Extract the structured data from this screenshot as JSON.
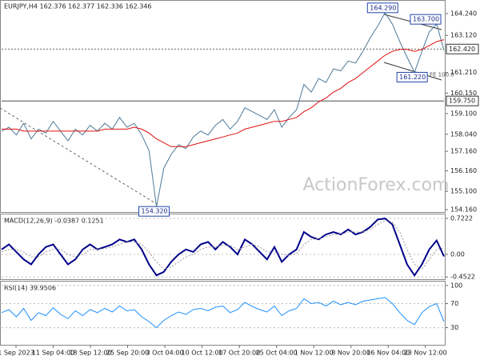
{
  "chart_data": [
    {
      "type": "line",
      "title": "EURJPY,H4 162.376 162.377 162.336 162.346",
      "ylim": [
        154.04,
        164.94
      ],
      "yticks": [
        {
          "value": 164.24,
          "label": "164.240"
        },
        {
          "value": 163.12,
          "label": "163.120"
        },
        {
          "value": 161.21,
          "label": "161.210"
        },
        {
          "value": 160.15,
          "label": "160.150"
        },
        {
          "value": 159.1,
          "label": "159.100"
        },
        {
          "value": 158.04,
          "label": "158.040"
        },
        {
          "value": 157.16,
          "label": "157.160"
        },
        {
          "value": 156.16,
          "label": "156.160"
        },
        {
          "value": 155.1,
          "label": "155.100"
        },
        {
          "value": 154.16,
          "label": "154.160"
        }
      ],
      "levels": [
        {
          "value": 162.42,
          "label": "162.420"
        },
        {
          "value": 159.75,
          "label": "159.750"
        }
      ],
      "annotation": "FE 100.0",
      "series": [
        {
          "color": "#4f7a96",
          "values": [
            158.2,
            158.4,
            158.0,
            158.6,
            157.8,
            158.3,
            158.1,
            158.7,
            158.2,
            157.7,
            158.3,
            158.0,
            158.5,
            158.2,
            158.6,
            158.3,
            158.9,
            158.4,
            158.6,
            158.0,
            157.2,
            154.32,
            156.3,
            157.0,
            157.5,
            157.3,
            157.9,
            158.2,
            158.0,
            158.5,
            158.8,
            158.3,
            158.7,
            159.4,
            159.2,
            159.0,
            158.8,
            159.3,
            158.4,
            158.9,
            159.3,
            160.6,
            160.2,
            160.9,
            160.7,
            161.4,
            161.3,
            161.8,
            161.7,
            162.3,
            163.0,
            163.6,
            164.29,
            163.7,
            162.8,
            162.0,
            161.22,
            162.3,
            163.3,
            163.7,
            162.35
          ],
          "value_labels": [
            null,
            null,
            null,
            null,
            null,
            null,
            null,
            null,
            null,
            null,
            null,
            null,
            null,
            null,
            null,
            null,
            null,
            null,
            null,
            null,
            null,
            "154.320",
            null,
            null,
            null,
            null,
            null,
            null,
            null,
            null,
            null,
            null,
            null,
            null,
            null,
            null,
            null,
            null,
            null,
            null,
            null,
            null,
            null,
            null,
            null,
            null,
            null,
            null,
            null,
            null,
            null,
            null,
            "164.290",
            null,
            null,
            null,
            "161.220",
            null,
            null,
            "163.700",
            null
          ]
        },
        {
          "color": "#e01010",
          "values": [
            158.3,
            158.3,
            158.3,
            158.2,
            158.2,
            158.2,
            158.2,
            158.2,
            158.2,
            158.2,
            158.2,
            158.2,
            158.2,
            158.2,
            158.3,
            158.3,
            158.3,
            158.3,
            158.4,
            158.3,
            158.1,
            157.8,
            157.6,
            157.4,
            157.4,
            157.4,
            157.5,
            157.6,
            157.7,
            157.8,
            157.9,
            158.0,
            158.1,
            158.3,
            158.4,
            158.5,
            158.6,
            158.7,
            158.7,
            158.8,
            158.9,
            159.2,
            159.4,
            159.7,
            159.9,
            160.2,
            160.4,
            160.7,
            160.9,
            161.2,
            161.5,
            161.8,
            162.1,
            162.3,
            162.4,
            162.4,
            162.3,
            162.4,
            162.6,
            162.8,
            162.9
          ]
        }
      ]
    },
    {
      "type": "line",
      "title": "MACD(12,26,9) -0.0387 0.1251",
      "ylim": [
        -0.5136,
        0.8025
      ],
      "yticks": [
        0.7222,
        {
          "value": 0,
          "label": "0.00"
        },
        -0.4522
      ],
      "series": [
        {
          "color": "#00008b",
          "values": [
            0.1,
            0.2,
            0.05,
            -0.1,
            -0.2,
            0.0,
            0.15,
            0.2,
            0.0,
            -0.2,
            -0.1,
            0.1,
            0.2,
            0.1,
            0.15,
            0.2,
            0.3,
            0.25,
            0.3,
            0.1,
            -0.2,
            -0.42,
            -0.35,
            -0.15,
            0.0,
            0.1,
            0.05,
            0.2,
            0.25,
            0.1,
            0.25,
            0.15,
            0.0,
            0.3,
            0.2,
            0.05,
            -0.1,
            0.15,
            -0.15,
            0.0,
            0.1,
            0.45,
            0.35,
            0.3,
            0.4,
            0.45,
            0.4,
            0.5,
            0.4,
            0.45,
            0.55,
            0.7,
            0.72,
            0.6,
            0.2,
            -0.2,
            -0.42,
            -0.2,
            0.1,
            0.28,
            -0.04
          ]
        },
        {
          "color": "#9a9a9a",
          "values": [
            0.05,
            0.1,
            0.1,
            0.05,
            -0.05,
            -0.05,
            0.05,
            0.1,
            0.1,
            0.0,
            -0.05,
            0.0,
            0.1,
            0.1,
            0.12,
            0.15,
            0.2,
            0.25,
            0.25,
            0.2,
            0.05,
            -0.15,
            -0.3,
            -0.25,
            -0.15,
            -0.05,
            0.0,
            0.1,
            0.15,
            0.15,
            0.18,
            0.18,
            0.1,
            0.15,
            0.2,
            0.15,
            0.05,
            0.05,
            0.0,
            -0.02,
            0.02,
            0.2,
            0.3,
            0.32,
            0.35,
            0.4,
            0.4,
            0.45,
            0.45,
            0.45,
            0.5,
            0.6,
            0.68,
            0.65,
            0.45,
            0.1,
            -0.2,
            -0.3,
            -0.1,
            0.1,
            0.13
          ]
        }
      ]
    },
    {
      "type": "line",
      "title": "RSI(14) 39.9506",
      "ylim": [
        0.2,
        106.5
      ],
      "yticks": [
        100,
        70,
        30
      ],
      "series": [
        {
          "color": "#1e90ff",
          "values": [
            55,
            60,
            48,
            62,
            42,
            55,
            50,
            63,
            52,
            45,
            58,
            50,
            60,
            55,
            62,
            56,
            66,
            58,
            60,
            48,
            40,
            30,
            42,
            50,
            56,
            52,
            60,
            62,
            58,
            64,
            66,
            55,
            60,
            72,
            65,
            60,
            56,
            66,
            50,
            58,
            62,
            78,
            70,
            72,
            66,
            74,
            68,
            72,
            68,
            74,
            76,
            78,
            80,
            70,
            55,
            42,
            35,
            55,
            65,
            70,
            40
          ]
        }
      ]
    }
  ],
  "x_axis_labels": [
    "1 Sep 2023",
    "11 Sep 04:00",
    "18 Sep 12:00",
    "25 Sep 20:00",
    "3 Oct 04:00",
    "10 Oct 12:00",
    "17 Oct 20:00",
    "25 Oct 04:00",
    "1 Nov 12:00",
    "8 Nov 20:00",
    "16 Nov 04:00",
    "23 Nov 12:00"
  ],
  "watermark": "ActionForex.com"
}
